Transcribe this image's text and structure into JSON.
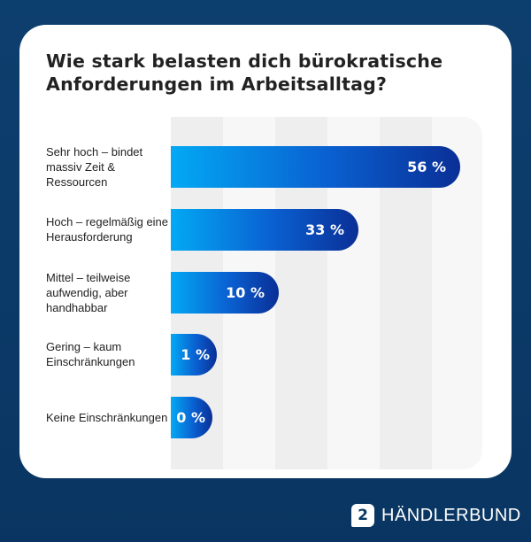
{
  "chart_data": {
    "type": "bar",
    "orientation": "horizontal",
    "title": "Wie stark belasten dich bürokratische Anforderungen im Arbeitsalltag?",
    "categories": [
      "Sehr hoch – bindet massiv Zeit & Ressourcen",
      "Hoch – regelmäßig eine Herausforderung",
      "Mittel – teilweise aufwendig, aber handhabbar",
      "Gering – kaum Einschränkungen",
      "Keine Einschränkungen"
    ],
    "values": [
      56,
      33,
      10,
      1,
      0
    ],
    "value_labels": [
      "56 %",
      "33 %",
      "10 %",
      "1 %",
      "0 %"
    ],
    "unit": "%",
    "grid": false,
    "colors": {
      "bar_start": "#03a9f4",
      "bar_end": "#0a2f96",
      "background": "#0b3a64"
    }
  },
  "brand": {
    "name": "HÄNDLERBUND",
    "logo_glyph": "2"
  }
}
